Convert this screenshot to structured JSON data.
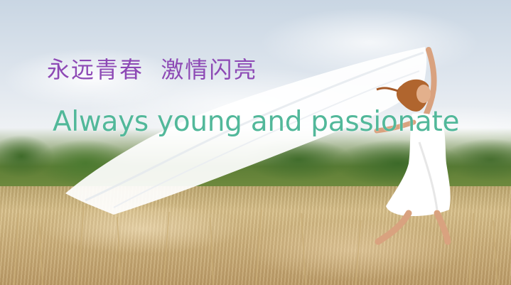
{
  "banner": {
    "title_cn": "永远青春  激情闪亮",
    "title_en": "Always young and passionate"
  },
  "colors": {
    "title_cn": "#8d49b5",
    "title_en": "#52b89a",
    "sky": "#dfe6ee",
    "field": "#d4bd8a"
  }
}
